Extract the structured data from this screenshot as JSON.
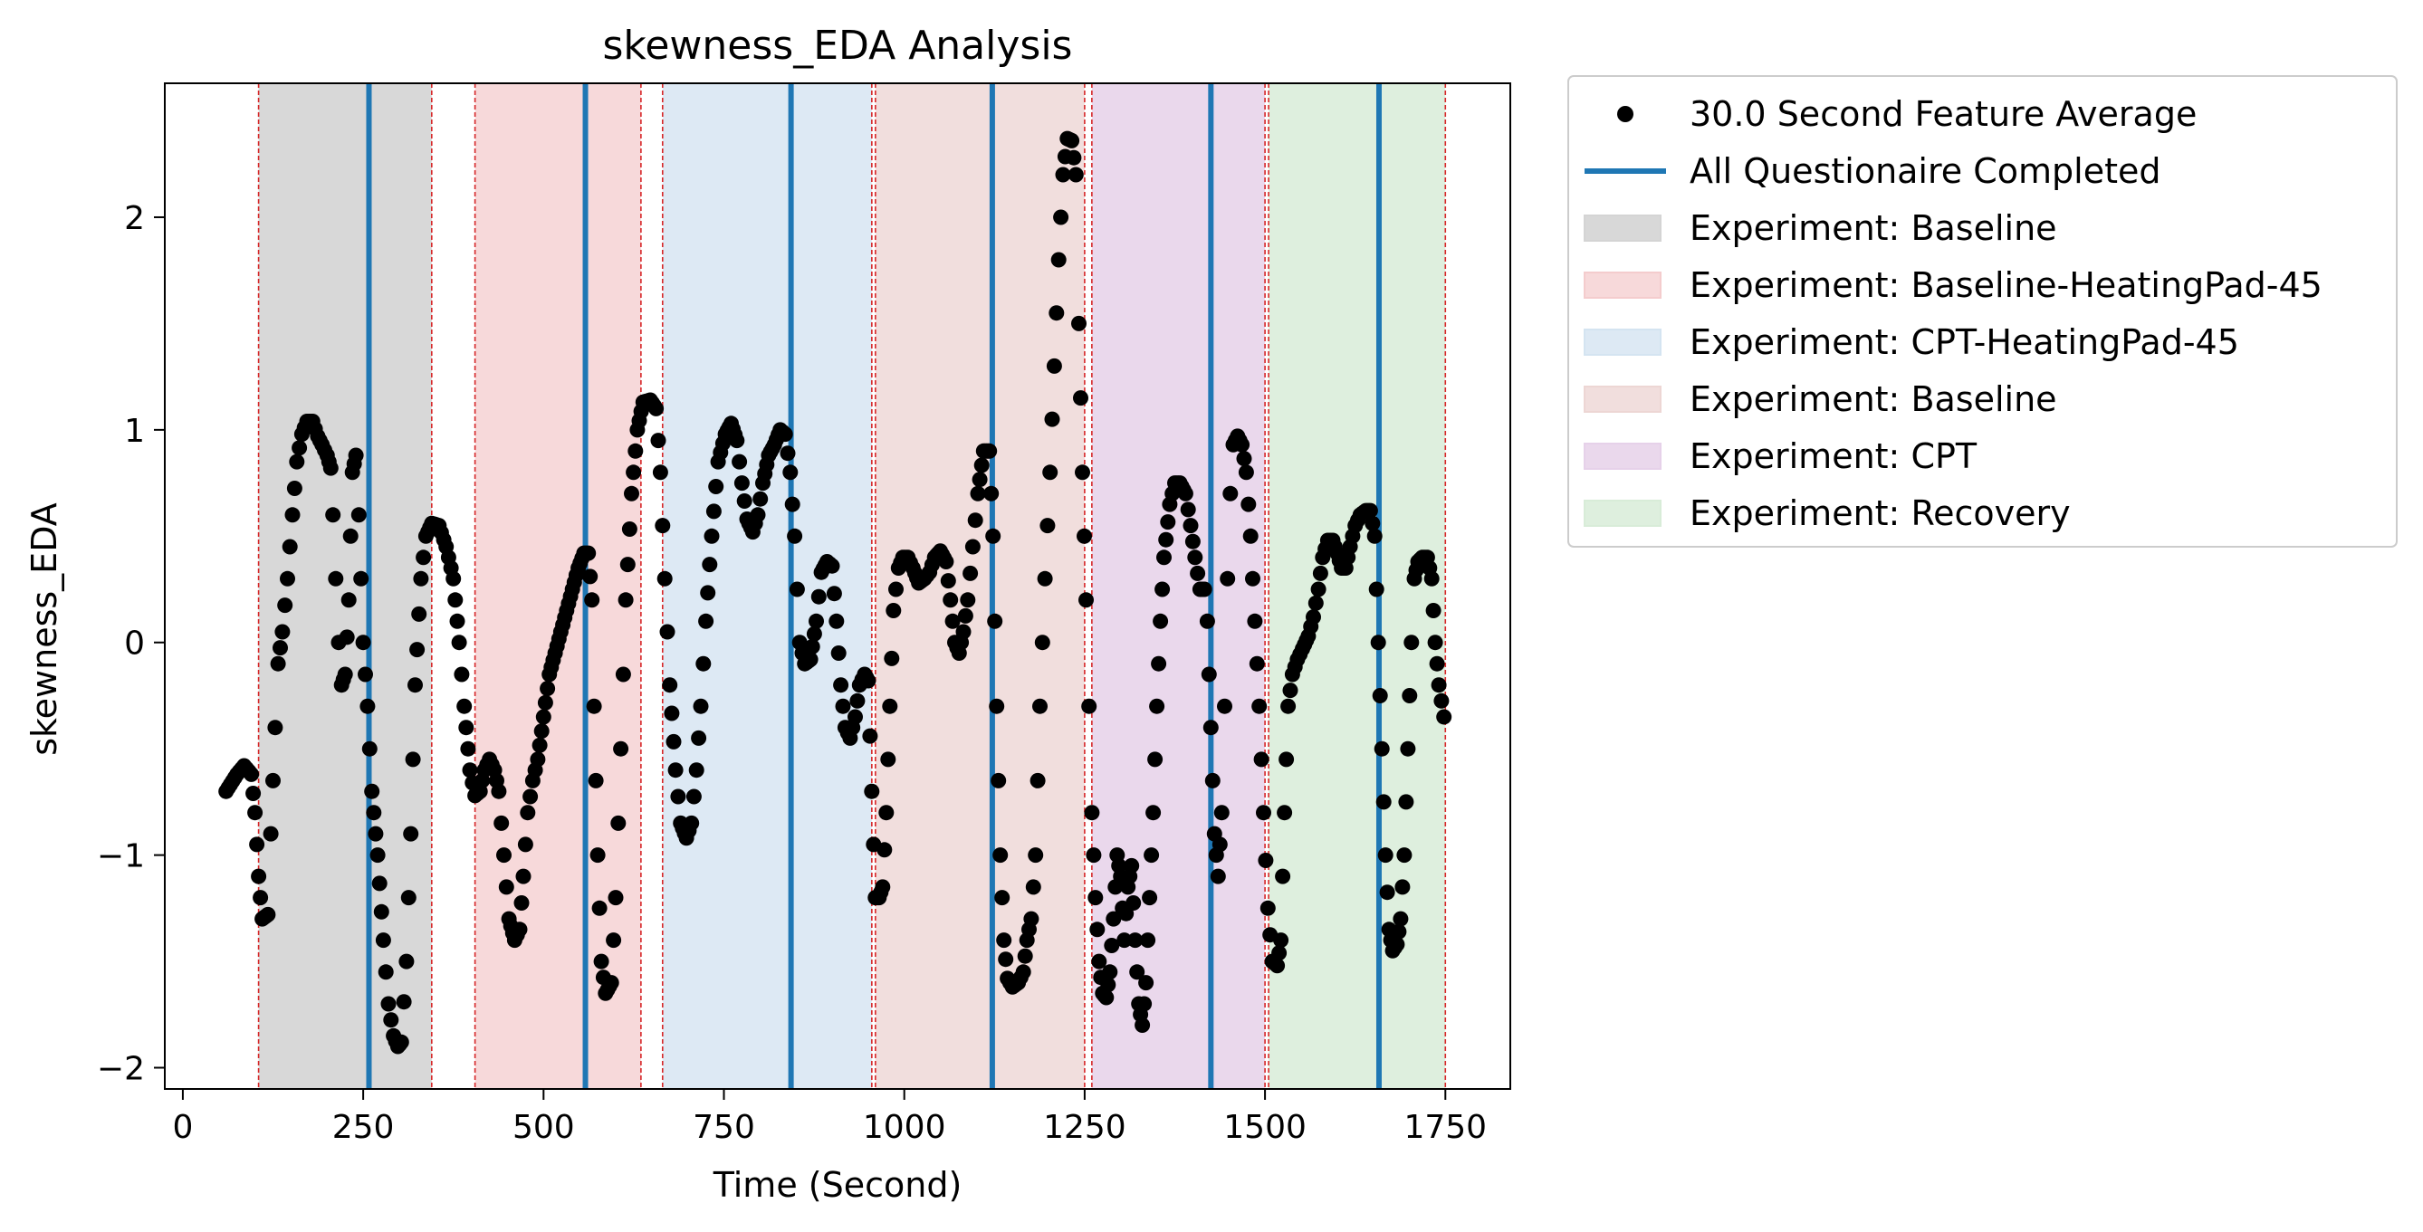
{
  "chart_data": {
    "type": "scatter",
    "title": "skewness_EDA Analysis",
    "xlabel": "Time (Second)",
    "ylabel": "skewness_EDA",
    "xlim": [
      -25,
      1840
    ],
    "ylim": [
      -2.1,
      2.63
    ],
    "xticks": [
      0,
      250,
      500,
      750,
      1000,
      1250,
      1500,
      1750
    ],
    "yticks": [
      -2,
      -1,
      0,
      1,
      2
    ],
    "ytick_labels": [
      "−2",
      "−1",
      "0",
      "1",
      "2"
    ],
    "legend_position": "outside-top-right",
    "grid": false,
    "point_color": "#000000",
    "line_color": "#1f77b4",
    "boundary_color": "#d62728",
    "curve_series": {
      "name": "30.0 Second Feature Average",
      "points": [
        [
          60,
          -0.7
        ],
        [
          75,
          -0.62
        ],
        [
          85,
          -0.58
        ],
        [
          95,
          -0.62
        ],
        [
          100,
          -0.8
        ],
        [
          105,
          -1.1
        ],
        [
          110,
          -1.3
        ],
        [
          118,
          -1.28
        ],
        [
          122,
          -0.9
        ],
        [
          128,
          -0.4
        ],
        [
          132,
          -0.1
        ],
        [
          138,
          0.05
        ],
        [
          145,
          0.3
        ],
        [
          152,
          0.6
        ],
        [
          158,
          0.85
        ],
        [
          165,
          0.98
        ],
        [
          172,
          1.04
        ],
        [
          180,
          1.04
        ],
        [
          187,
          0.97
        ],
        [
          193,
          0.93
        ],
        [
          200,
          0.88
        ],
        [
          205,
          0.82
        ],
        [
          208,
          0.6
        ],
        [
          212,
          0.3
        ],
        [
          216,
          0.0
        ],
        [
          220,
          -0.2
        ],
        [
          225,
          -0.15
        ],
        [
          230,
          0.2
        ],
        [
          235,
          0.8
        ],
        [
          240,
          0.88
        ],
        [
          244,
          0.6
        ],
        [
          250,
          0.0
        ],
        [
          256,
          -0.3
        ],
        [
          262,
          -0.7
        ],
        [
          270,
          -1.0
        ],
        [
          278,
          -1.4
        ],
        [
          285,
          -1.7
        ],
        [
          292,
          -1.85
        ],
        [
          298,
          -1.9
        ],
        [
          303,
          -1.88
        ],
        [
          310,
          -1.5
        ],
        [
          316,
          -0.9
        ],
        [
          322,
          -0.2
        ],
        [
          330,
          0.3
        ],
        [
          337,
          0.5
        ],
        [
          345,
          0.56
        ],
        [
          355,
          0.55
        ],
        [
          365,
          0.45
        ],
        [
          375,
          0.3
        ],
        [
          383,
          0.0
        ],
        [
          390,
          -0.3
        ],
        [
          398,
          -0.6
        ],
        [
          405,
          -0.72
        ],
        [
          412,
          -0.7
        ],
        [
          418,
          -0.6
        ],
        [
          425,
          -0.55
        ],
        [
          432,
          -0.6
        ],
        [
          438,
          -0.7
        ],
        [
          445,
          -1.0
        ],
        [
          452,
          -1.3
        ],
        [
          460,
          -1.4
        ],
        [
          467,
          -1.35
        ],
        [
          472,
          -1.1
        ],
        [
          478,
          -0.8
        ],
        [
          485,
          -0.65
        ],
        [
          492,
          -0.55
        ],
        [
          500,
          -0.35
        ],
        [
          508,
          -0.15
        ],
        [
          516,
          -0.05
        ],
        [
          524,
          0.05
        ],
        [
          532,
          0.15
        ],
        [
          540,
          0.25
        ],
        [
          548,
          0.35
        ],
        [
          556,
          0.42
        ],
        [
          562,
          0.42
        ],
        [
          567,
          0.2
        ],
        [
          570,
          -0.3
        ],
        [
          575,
          -1.0
        ],
        [
          580,
          -1.5
        ],
        [
          586,
          -1.65
        ],
        [
          594,
          -1.6
        ],
        [
          600,
          -1.2
        ],
        [
          607,
          -0.5
        ],
        [
          614,
          0.2
        ],
        [
          622,
          0.7
        ],
        [
          630,
          1.0
        ],
        [
          638,
          1.13
        ],
        [
          648,
          1.14
        ],
        [
          656,
          1.1
        ],
        [
          662,
          0.8
        ],
        [
          668,
          0.3
        ],
        [
          675,
          -0.2
        ],
        [
          683,
          -0.6
        ],
        [
          690,
          -0.85
        ],
        [
          698,
          -0.92
        ],
        [
          705,
          -0.85
        ],
        [
          712,
          -0.6
        ],
        [
          718,
          -0.3
        ],
        [
          725,
          0.1
        ],
        [
          733,
          0.5
        ],
        [
          742,
          0.85
        ],
        [
          752,
          0.98
        ],
        [
          760,
          1.03
        ],
        [
          768,
          0.95
        ],
        [
          775,
          0.75
        ],
        [
          782,
          0.58
        ],
        [
          790,
          0.52
        ],
        [
          797,
          0.6
        ],
        [
          804,
          0.75
        ],
        [
          812,
          0.88
        ],
        [
          820,
          0.93
        ],
        [
          828,
          1.0
        ],
        [
          835,
          0.98
        ],
        [
          842,
          0.8
        ],
        [
          848,
          0.5
        ],
        [
          855,
          0.0
        ],
        [
          862,
          -0.1
        ],
        [
          870,
          -0.08
        ],
        [
          878,
          0.1
        ],
        [
          885,
          0.33
        ],
        [
          893,
          0.38
        ],
        [
          900,
          0.36
        ],
        [
          906,
          0.1
        ],
        [
          912,
          -0.2
        ],
        [
          918,
          -0.4
        ],
        [
          925,
          -0.45
        ],
        [
          932,
          -0.35
        ],
        [
          938,
          -0.2
        ],
        [
          945,
          -0.15
        ],
        [
          950,
          -0.18
        ],
        [
          955,
          -0.7
        ],
        [
          960,
          -1.2
        ],
        [
          965,
          -1.2
        ],
        [
          970,
          -1.15
        ],
        [
          975,
          -0.8
        ],
        [
          980,
          -0.3
        ],
        [
          985,
          0.15
        ],
        [
          992,
          0.35
        ],
        [
          998,
          0.4
        ],
        [
          1005,
          0.4
        ],
        [
          1012,
          0.35
        ],
        [
          1020,
          0.28
        ],
        [
          1028,
          0.3
        ],
        [
          1035,
          0.33
        ],
        [
          1042,
          0.4
        ],
        [
          1050,
          0.43
        ],
        [
          1058,
          0.38
        ],
        [
          1064,
          0.2
        ],
        [
          1070,
          0.0
        ],
        [
          1076,
          -0.05
        ],
        [
          1082,
          0.05
        ],
        [
          1088,
          0.2
        ],
        [
          1095,
          0.45
        ],
        [
          1102,
          0.7
        ],
        [
          1110,
          0.9
        ],
        [
          1118,
          0.9
        ],
        [
          1123,
          0.5
        ],
        [
          1128,
          -0.3
        ],
        [
          1133,
          -1.0
        ],
        [
          1138,
          -1.4
        ],
        [
          1143,
          -1.58
        ],
        [
          1150,
          -1.62
        ],
        [
          1158,
          -1.6
        ],
        [
          1165,
          -1.55
        ],
        [
          1170,
          -1.4
        ],
        [
          1176,
          -1.3
        ],
        [
          1182,
          -1.0
        ],
        [
          1188,
          -0.3
        ],
        [
          1195,
          0.3
        ],
        [
          1202,
          0.8
        ],
        [
          1208,
          1.3
        ],
        [
          1214,
          1.8
        ],
        [
          1220,
          2.2
        ],
        [
          1226,
          2.37
        ],
        [
          1232,
          2.36
        ],
        [
          1238,
          2.2
        ],
        [
          1242,
          1.5
        ],
        [
          1247,
          0.8
        ],
        [
          1252,
          0.2
        ],
        [
          1256,
          -0.3
        ],
        [
          1260,
          -0.8
        ],
        [
          1265,
          -1.2
        ],
        [
          1270,
          -1.5
        ],
        [
          1275,
          -1.65
        ],
        [
          1280,
          -1.67
        ],
        [
          1285,
          -1.55
        ],
        [
          1290,
          -1.3
        ],
        [
          1295,
          -1.0
        ],
        [
          1300,
          -1.1
        ],
        [
          1305,
          -1.4
        ],
        [
          1310,
          -1.15
        ],
        [
          1315,
          -1.05
        ],
        [
          1320,
          -1.4
        ],
        [
          1325,
          -1.7
        ],
        [
          1330,
          -1.8
        ],
        [
          1335,
          -1.6
        ],
        [
          1340,
          -1.2
        ],
        [
          1345,
          -0.8
        ],
        [
          1350,
          -0.3
        ],
        [
          1355,
          0.1
        ],
        [
          1360,
          0.4
        ],
        [
          1368,
          0.65
        ],
        [
          1375,
          0.75
        ],
        [
          1382,
          0.75
        ],
        [
          1390,
          0.7
        ],
        [
          1397,
          0.55
        ],
        [
          1403,
          0.4
        ],
        [
          1410,
          0.25
        ],
        [
          1416,
          0.25
        ],
        [
          1420,
          0.1
        ],
        [
          1425,
          -0.4
        ],
        [
          1430,
          -0.9
        ],
        [
          1435,
          -1.1
        ],
        [
          1440,
          -0.8
        ],
        [
          1444,
          -0.3
        ],
        [
          1448,
          0.3
        ],
        [
          1452,
          0.7
        ],
        [
          1456,
          0.93
        ],
        [
          1462,
          0.97
        ],
        [
          1468,
          0.93
        ],
        [
          1474,
          0.8
        ],
        [
          1480,
          0.5
        ],
        [
          1486,
          0.1
        ],
        [
          1492,
          -0.3
        ],
        [
          1498,
          -0.8
        ],
        [
          1504,
          -1.25
        ],
        [
          1510,
          -1.5
        ],
        [
          1517,
          -1.52
        ],
        [
          1522,
          -1.4
        ],
        [
          1527,
          -0.8
        ],
        [
          1532,
          -0.3
        ],
        [
          1538,
          -0.15
        ],
        [
          1545,
          -0.08
        ],
        [
          1552,
          -0.03
        ],
        [
          1560,
          0.03
        ],
        [
          1567,
          0.12
        ],
        [
          1574,
          0.25
        ],
        [
          1580,
          0.4
        ],
        [
          1587,
          0.48
        ],
        [
          1594,
          0.48
        ],
        [
          1600,
          0.42
        ],
        [
          1606,
          0.35
        ],
        [
          1612,
          0.35
        ],
        [
          1618,
          0.45
        ],
        [
          1625,
          0.55
        ],
        [
          1632,
          0.6
        ],
        [
          1640,
          0.62
        ],
        [
          1646,
          0.62
        ],
        [
          1652,
          0.5
        ],
        [
          1657,
          0.0
        ],
        [
          1662,
          -0.5
        ],
        [
          1667,
          -1.0
        ],
        [
          1672,
          -1.35
        ],
        [
          1677,
          -1.45
        ],
        [
          1683,
          -1.42
        ],
        [
          1688,
          -1.3
        ],
        [
          1693,
          -1.0
        ],
        [
          1698,
          -0.5
        ],
        [
          1703,
          0.0
        ],
        [
          1707,
          0.3
        ],
        [
          1712,
          0.38
        ],
        [
          1718,
          0.4
        ],
        [
          1725,
          0.4
        ],
        [
          1731,
          0.3
        ],
        [
          1736,
          0.0
        ],
        [
          1741,
          -0.2
        ],
        [
          1748,
          -0.35
        ]
      ]
    },
    "questionnaire_lines": {
      "name": "All Questionaire Completed",
      "x": [
        258,
        558,
        843,
        1122,
        1425,
        1658
      ]
    },
    "phase_bands": [
      {
        "label": "Experiment: Baseline",
        "x_start": 105,
        "x_end": 345,
        "color": "#d4d4d4",
        "opacity": 0.9
      },
      {
        "label": "Experiment: Baseline-HeatingPad-45",
        "x_start": 405,
        "x_end": 635,
        "color": "#f4cccd",
        "opacity": 0.75
      },
      {
        "label": "Experiment: CPT-HeatingPad-45",
        "x_start": 665,
        "x_end": 955,
        "color": "#d4e4f1",
        "opacity": 0.8
      },
      {
        "label": "Experiment: Baseline",
        "x_start": 960,
        "x_end": 1250,
        "color": "#edd6d4",
        "opacity": 0.8
      },
      {
        "label": "Experiment: CPT",
        "x_start": 1260,
        "x_end": 1500,
        "color": "#e6d1e9",
        "opacity": 0.85
      },
      {
        "label": "Experiment: Recovery",
        "x_start": 1505,
        "x_end": 1750,
        "color": "#d8ecd8",
        "opacity": 0.85
      }
    ]
  }
}
